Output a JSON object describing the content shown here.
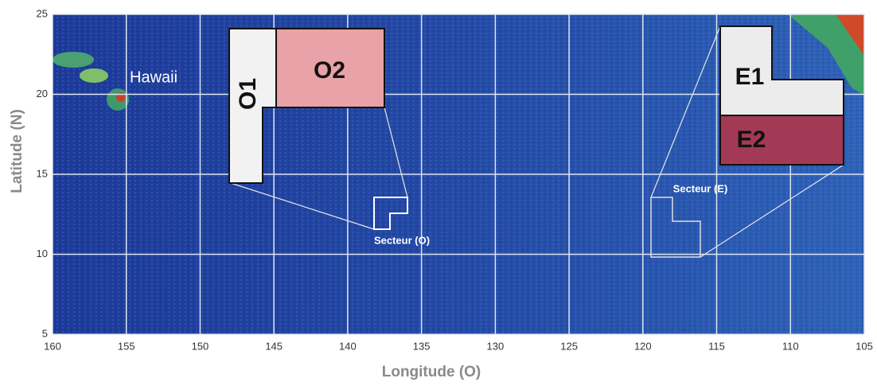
{
  "map": {
    "x_label": "Longitude (O)",
    "y_label": "Latitude (N)",
    "xlim": [
      160,
      105
    ],
    "ylim": [
      5,
      25
    ],
    "xticks": [
      160,
      155,
      150,
      145,
      140,
      135,
      130,
      125,
      120,
      115,
      110,
      105
    ],
    "yticks": [
      5,
      10,
      15,
      20,
      25
    ],
    "places": {
      "hawaii": "Hawaii",
      "sector_west": "Secteur (O)",
      "sector_east": "Secteur (E)"
    },
    "zones": {
      "o1": "O1",
      "o2": "O2",
      "e1": "E1",
      "e2": "E2"
    }
  }
}
